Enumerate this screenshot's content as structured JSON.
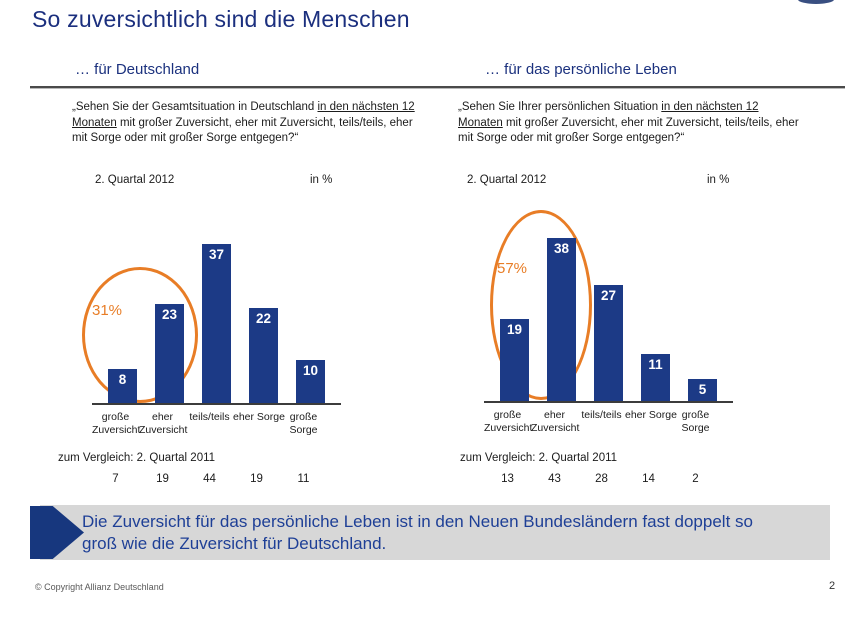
{
  "title": "So zuversichtlich sind die Menschen",
  "colors": {
    "bar_blue": "#1c3a86",
    "highlight_orange": "#e87d26",
    "title_navy": "#1b2f7e",
    "summary_text_blue": "#1e3f96",
    "summary_bg": "#d7d7d7"
  },
  "chart_data": [
    {
      "type": "bar",
      "header": "… für Deutschland",
      "question": {
        "prefix": "„Sehen Sie der Gesamtsituation in Deutschland ",
        "underlined": "in den nächsten 12 Monaten",
        "suffix": " mit großer Zuversicht, eher mit Zuversicht, teils/teils, eher mit Sorge oder mit großer Sorge entgegen?“"
      },
      "period_label": "2. Quartal 2012",
      "unit_label": "in %",
      "categories": [
        "große Zuversicht",
        "eher Zuversicht",
        "teils/teils",
        "eher Sorge",
        "große Sorge"
      ],
      "category_lines": [
        [
          "große",
          "Zuversicht"
        ],
        [
          "eher",
          "Zuversicht"
        ],
        [
          "teils/teils"
        ],
        [
          "eher Sorge"
        ],
        [
          "große",
          "Sorge"
        ]
      ],
      "values": [
        8,
        23,
        37,
        22,
        10
      ],
      "ylim": [
        0,
        40
      ],
      "highlight": {
        "label": "31%",
        "covers": [
          "große Zuversicht",
          "eher Zuversicht"
        ]
      },
      "comparison": {
        "label": "zum Vergleich: 2. Quartal 2011",
        "values": [
          7,
          19,
          44,
          19,
          11
        ]
      }
    },
    {
      "type": "bar",
      "header": "… für das persönliche Leben",
      "question": {
        "prefix": "„Sehen Sie Ihrer persönlichen Situation ",
        "underlined": "in den nächsten 12 Monaten",
        "suffix": " mit großer Zuversicht, eher mit Zuversicht, teils/teils, eher mit Sorge oder mit großer Sorge entgegen?“"
      },
      "period_label": "2. Quartal 2012",
      "unit_label": "in %",
      "categories": [
        "große Zuversicht",
        "eher Zuversicht",
        "teils/teils",
        "eher Sorge",
        "große Sorge"
      ],
      "category_lines": [
        [
          "große",
          "Zuversicht"
        ],
        [
          "eher",
          "Zuversicht"
        ],
        [
          "teils/teils"
        ],
        [
          "eher Sorge"
        ],
        [
          "große",
          "Sorge"
        ]
      ],
      "values": [
        19,
        38,
        27,
        11,
        5
      ],
      "ylim": [
        0,
        40
      ],
      "highlight": {
        "label": "57%",
        "covers": [
          "große Zuversicht",
          "eher Zuversicht"
        ]
      },
      "comparison": {
        "label": "zum Vergleich: 2. Quartal 2011",
        "values": [
          13,
          43,
          28,
          14,
          2
        ]
      }
    }
  ],
  "summary": {
    "text": "Die Zuversicht für das persönliche Leben ist in den Neuen Bundesländern fast doppelt so groß wie die Zuversicht für Deutschland."
  },
  "footer": {
    "copyright": "© Copyright Allianz Deutschland",
    "page": "2"
  }
}
